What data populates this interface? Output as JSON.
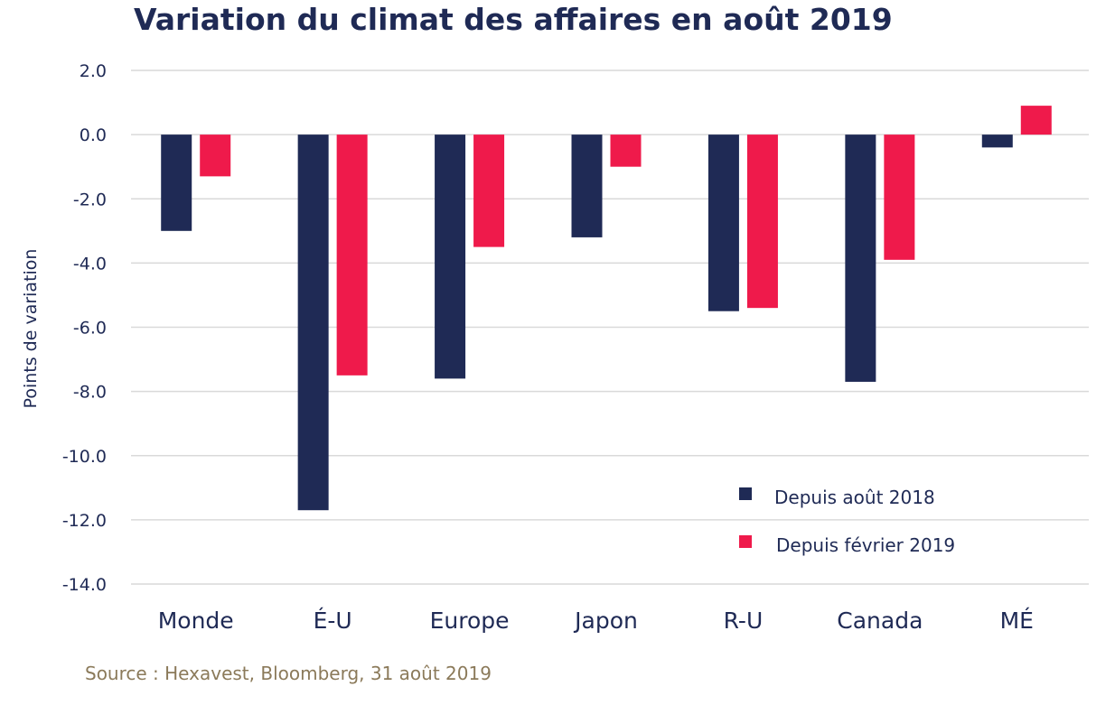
{
  "chart_data": {
    "type": "bar",
    "title": "Variation du climat des affaires en août 2019",
    "xlabel": "",
    "ylabel": "Points de variation",
    "categories": [
      "Monde",
      "É-U",
      "Europe",
      "Japon",
      "R-U",
      "Canada",
      "MÉ"
    ],
    "series": [
      {
        "name": "Depuis août 2018",
        "color": "#1f2a55",
        "values": [
          -3.0,
          -11.7,
          -7.6,
          -3.2,
          -5.5,
          -7.7,
          -0.4
        ]
      },
      {
        "name": "Depuis février 2019",
        "color": "#ef1a4b",
        "values": [
          -1.3,
          -7.5,
          -3.5,
          -1.0,
          -5.4,
          -3.9,
          0.9
        ]
      }
    ],
    "ylim": [
      -14,
      2
    ],
    "yticks": [
      2,
      0,
      -2,
      -4,
      -6,
      -8,
      -10,
      -12,
      -14
    ],
    "ytick_labels": [
      "2.0",
      "0.0",
      "-2.0",
      "-4.0",
      "-6.0",
      "-8.0",
      "-10.0",
      "-12.0",
      "-14.0"
    ],
    "grid": true,
    "legend_position": "bottom-right",
    "source": "Source : Hexavest, Bloomberg, 31 août  2019"
  }
}
